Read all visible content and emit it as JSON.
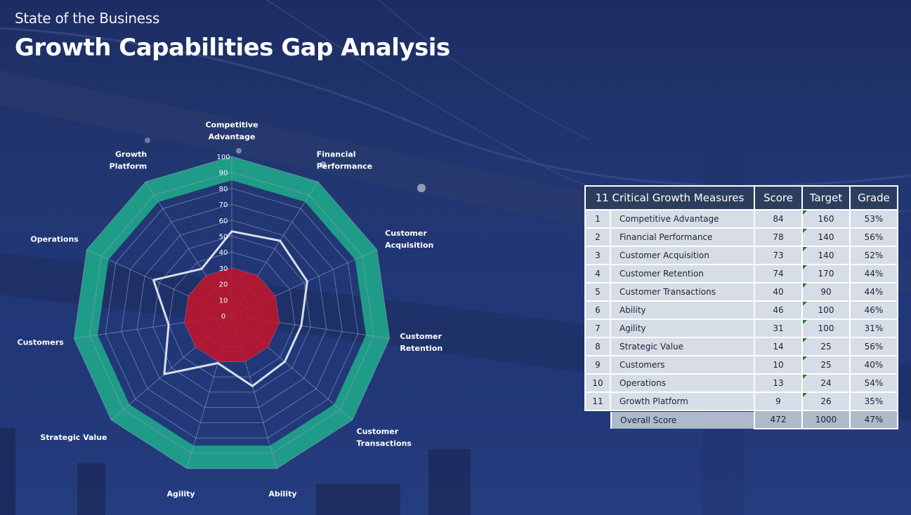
{
  "header": {
    "subtitle": "State of the Business",
    "title": "Growth Capabilities Gap Analysis"
  },
  "colors": {
    "outer_band": "#1fa58a",
    "center_fill": "#c2152b",
    "score_line": "#d9dee8",
    "grid": "#8e9bbd",
    "table_header": "#2b3e5d",
    "table_row": "#d6dde6",
    "table_total_row": "#aeb9c9"
  },
  "chart_data": {
    "type": "radar",
    "categories": [
      [
        "Competitive",
        "Advantage"
      ],
      [
        "Financial",
        "Performance"
      ],
      [
        "Customer",
        "Acquisition"
      ],
      [
        "Customer",
        "Retention"
      ],
      [
        "Customer",
        "Transactions"
      ],
      [
        "Ability"
      ],
      [
        "Agility"
      ],
      [
        "Strategic Value"
      ],
      [
        "Customers"
      ],
      [
        "Operations"
      ],
      [
        "Growth",
        "Platform"
      ]
    ],
    "rlim": [
      0,
      100
    ],
    "ticks": [
      0,
      10,
      20,
      30,
      40,
      50,
      60,
      70,
      80,
      90,
      100
    ],
    "series": [
      {
        "role": "outer band",
        "from": 85,
        "to": 100
      },
      {
        "role": "inner zone",
        "values": [
          30,
          30,
          30,
          30,
          30,
          30,
          30,
          30,
          30,
          30,
          30
        ]
      },
      {
        "role": "grade line",
        "values": [
          53,
          56,
          52,
          44,
          44,
          46,
          31,
          56,
          40,
          54,
          35
        ]
      }
    ]
  },
  "table": {
    "headers": [
      "11 Critical Growth Measures",
      "Score",
      "Target",
      "Grade"
    ],
    "rows": [
      {
        "num": "1",
        "name": "Competitive Advantage",
        "score": "84",
        "target": "160",
        "grade": "53%"
      },
      {
        "num": "2",
        "name": "Financial Performance",
        "score": "78",
        "target": "140",
        "grade": "56%"
      },
      {
        "num": "3",
        "name": "Customer Acquisition",
        "score": "73",
        "target": "140",
        "grade": "52%"
      },
      {
        "num": "4",
        "name": "Customer Retention",
        "score": "74",
        "target": "170",
        "grade": "44%"
      },
      {
        "num": "5",
        "name": "Customer Transactions",
        "score": "40",
        "target": "90",
        "grade": "44%"
      },
      {
        "num": "6",
        "name": "Ability",
        "score": "46",
        "target": "100",
        "grade": "46%"
      },
      {
        "num": "7",
        "name": "Agility",
        "score": "31",
        "target": "100",
        "grade": "31%"
      },
      {
        "num": "8",
        "name": "Strategic Value",
        "score": "14",
        "target": "25",
        "grade": "56%"
      },
      {
        "num": "9",
        "name": "Customers",
        "score": "10",
        "target": "25",
        "grade": "40%"
      },
      {
        "num": "10",
        "name": "Operations",
        "score": "13",
        "target": "24",
        "grade": "54%"
      },
      {
        "num": "11",
        "name": "Growth Platform",
        "score": "9",
        "target": "26",
        "grade": "35%"
      }
    ],
    "total": {
      "name": "Overall Score",
      "score": "472",
      "target": "1000",
      "grade": "47%"
    }
  }
}
